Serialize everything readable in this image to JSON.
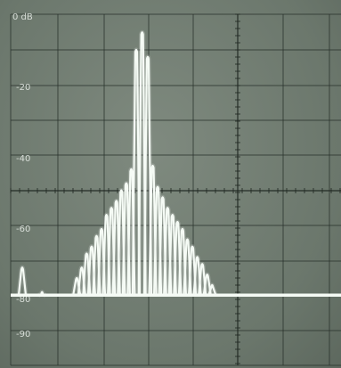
{
  "chart_data": {
    "type": "line",
    "title": "",
    "xlabel": "",
    "ylabel": "",
    "y_tick_labels": [
      "0 dB",
      "-20",
      "-40",
      "-60",
      "-80",
      "-90"
    ],
    "y_tick_values": [
      0,
      -20,
      -40,
      -60,
      -80,
      -90
    ],
    "x_tick_labels": [
      "",
      "",
      ""
    ],
    "ylim": [
      -100,
      0
    ],
    "grid": true,
    "trace_color": "#f5fbf5",
    "peaks": [
      {
        "x": 0.035,
        "y": -72
      },
      {
        "x": 0.095,
        "y": -79
      },
      {
        "x": 0.2,
        "y": -75
      },
      {
        "x": 0.215,
        "y": -72
      },
      {
        "x": 0.23,
        "y": -68
      },
      {
        "x": 0.245,
        "y": -66
      },
      {
        "x": 0.26,
        "y": -63
      },
      {
        "x": 0.275,
        "y": -61
      },
      {
        "x": 0.29,
        "y": -57
      },
      {
        "x": 0.305,
        "y": -55
      },
      {
        "x": 0.32,
        "y": -53
      },
      {
        "x": 0.335,
        "y": -50
      },
      {
        "x": 0.35,
        "y": -48
      },
      {
        "x": 0.365,
        "y": -44
      },
      {
        "x": 0.38,
        "y": -10
      },
      {
        "x": 0.398,
        "y": -5
      },
      {
        "x": 0.415,
        "y": -12
      },
      {
        "x": 0.43,
        "y": -43
      },
      {
        "x": 0.445,
        "y": -49
      },
      {
        "x": 0.46,
        "y": -52
      },
      {
        "x": 0.475,
        "y": -55
      },
      {
        "x": 0.49,
        "y": -57
      },
      {
        "x": 0.505,
        "y": -59
      },
      {
        "x": 0.52,
        "y": -61
      },
      {
        "x": 0.535,
        "y": -64
      },
      {
        "x": 0.55,
        "y": -66
      },
      {
        "x": 0.565,
        "y": -69
      },
      {
        "x": 0.58,
        "y": -71
      },
      {
        "x": 0.595,
        "y": -74
      },
      {
        "x": 0.61,
        "y": -77
      }
    ],
    "noise_floor": -80
  }
}
